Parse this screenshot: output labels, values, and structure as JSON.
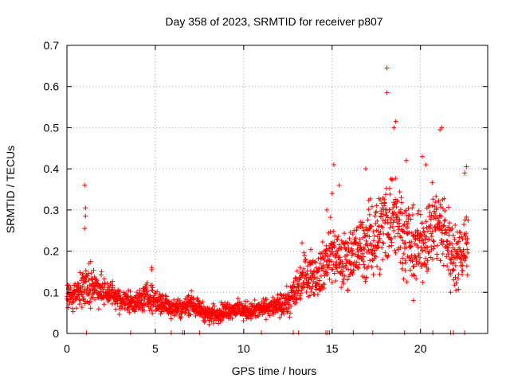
{
  "chart_data": {
    "type": "scatter",
    "title": "Day 358 of 2023, SRMTID for receiver p807",
    "xlabel": "GPS time / hours",
    "ylabel": "SRMTID / TECUs",
    "xlim": [
      0,
      23.8
    ],
    "ylim": [
      0,
      0.7
    ],
    "xticks": [
      0,
      5,
      10,
      15,
      20
    ],
    "yticks": [
      0,
      0.1,
      0.2,
      0.3,
      0.4,
      0.5,
      0.6,
      0.7
    ],
    "grid": true,
    "marker": "+",
    "color": "#ff0000",
    "series": [
      {
        "name": "SRMTID",
        "trend": {
          "x": [
            0,
            0.5,
            1,
            1.5,
            2,
            2.5,
            3,
            3.5,
            4,
            4.5,
            5,
            5.5,
            6,
            6.5,
            7,
            7.5,
            8,
            8.5,
            9,
            9.5,
            10,
            10.5,
            11,
            11.5,
            12,
            12.5,
            13,
            13.5,
            14,
            14.5,
            15,
            15.5,
            16,
            16.5,
            17,
            17.5,
            18,
            18.5,
            19,
            19.5,
            20,
            20.5,
            21,
            21.5,
            22,
            22.5
          ],
          "y": [
            0.085,
            0.1,
            0.11,
            0.12,
            0.1,
            0.1,
            0.08,
            0.08,
            0.075,
            0.09,
            0.08,
            0.07,
            0.065,
            0.06,
            0.075,
            0.06,
            0.045,
            0.05,
            0.055,
            0.06,
            0.055,
            0.055,
            0.06,
            0.065,
            0.065,
            0.075,
            0.11,
            0.15,
            0.14,
            0.16,
            0.2,
            0.17,
            0.19,
            0.2,
            0.22,
            0.24,
            0.27,
            0.3,
            0.25,
            0.21,
            0.21,
            0.25,
            0.27,
            0.23,
            0.18,
            0.22
          ],
          "spread": [
            0.03,
            0.04,
            0.05,
            0.04,
            0.035,
            0.03,
            0.025,
            0.025,
            0.025,
            0.03,
            0.03,
            0.025,
            0.025,
            0.02,
            0.025,
            0.02,
            0.02,
            0.02,
            0.02,
            0.02,
            0.02,
            0.02,
            0.02,
            0.02,
            0.025,
            0.03,
            0.045,
            0.05,
            0.045,
            0.06,
            0.065,
            0.06,
            0.065,
            0.07,
            0.08,
            0.09,
            0.1,
            0.1,
            0.1,
            0.08,
            0.08,
            0.09,
            0.09,
            0.08,
            0.07,
            0.08
          ]
        },
        "outliers": [
          {
            "x": 1.0,
            "y": 0.36
          },
          {
            "x": 1.05,
            "y": 0.305
          },
          {
            "x": 1.05,
            "y": 0.285
          },
          {
            "x": 1.0,
            "y": 0.255
          },
          {
            "x": 18.1,
            "y": 0.645
          },
          {
            "x": 18.1,
            "y": 0.585
          },
          {
            "x": 18.6,
            "y": 0.515
          },
          {
            "x": 18.5,
            "y": 0.5
          },
          {
            "x": 21.2,
            "y": 0.5
          },
          {
            "x": 21.1,
            "y": 0.495
          },
          {
            "x": 15.1,
            "y": 0.41
          },
          {
            "x": 20.3,
            "y": 0.41
          },
          {
            "x": 22.6,
            "y": 0.405
          },
          {
            "x": 22.5,
            "y": 0.39
          },
          {
            "x": 16.9,
            "y": 0.4
          },
          {
            "x": 19.2,
            "y": 0.42
          },
          {
            "x": 20.1,
            "y": 0.43
          },
          {
            "x": 15.4,
            "y": 0.36
          },
          {
            "x": 14.7,
            "y": 0.3
          },
          {
            "x": 15.0,
            "y": 0.34
          },
          {
            "x": 4.8,
            "y": 0.16
          },
          {
            "x": 4.8,
            "y": 0.155
          },
          {
            "x": 13.3,
            "y": 0.22
          },
          {
            "x": 21.7,
            "y": 0.1
          },
          {
            "x": 19.6,
            "y": 0.08
          }
        ],
        "edge_markers": [
          1.1,
          6.55,
          6.65,
          14.65,
          14.75,
          14.85,
          13.1,
          16.2,
          19.1,
          20.7,
          21.7,
          21.85,
          5.9,
          7.5,
          11.0,
          12.8,
          3.6,
          22.5,
          17.3
        ]
      }
    ]
  }
}
